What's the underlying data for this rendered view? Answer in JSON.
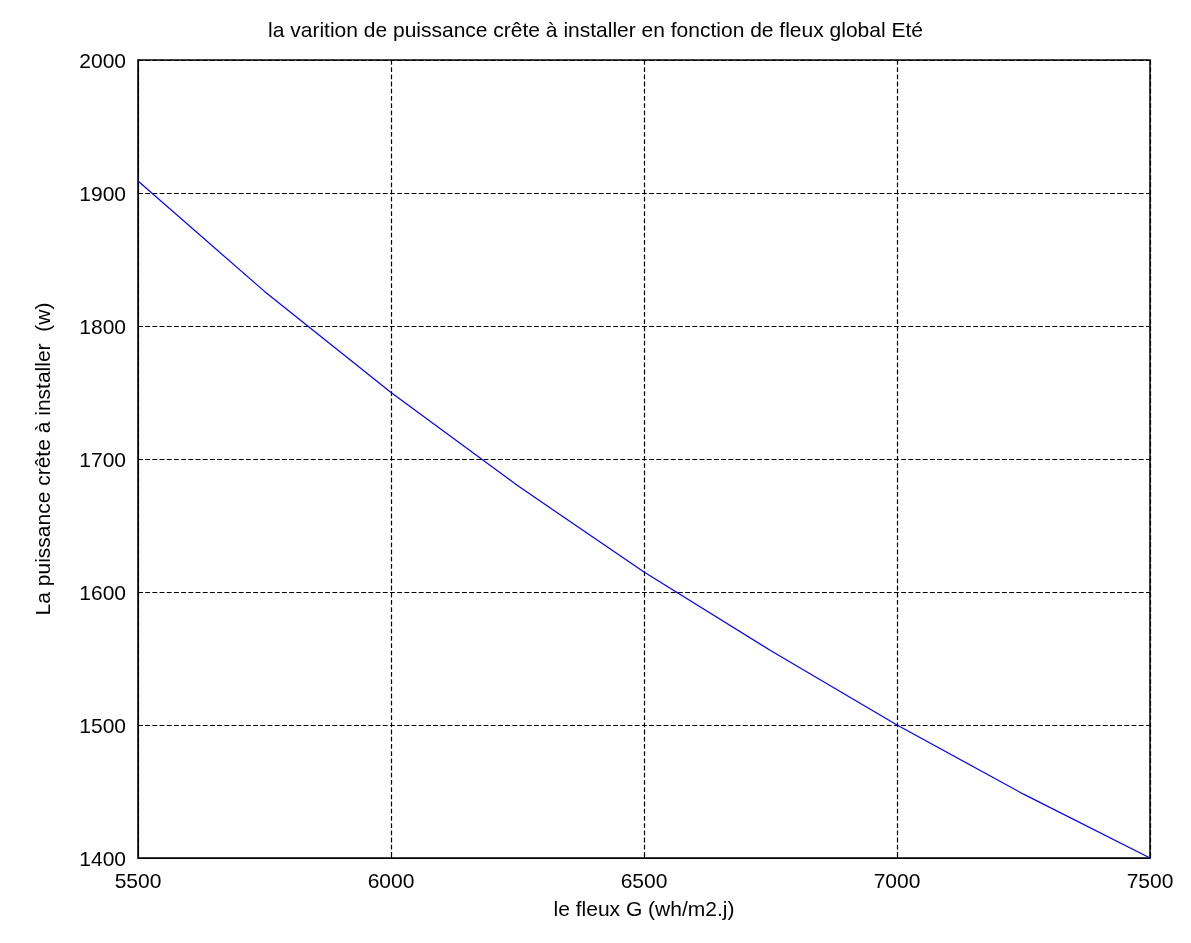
{
  "chart_data": {
    "type": "line",
    "title": "la varition de puissance crête à installer en fonction de fleux global Eté",
    "xlabel": "le fleux G (wh/m2.j)",
    "ylabel": "La puissance crête à installer  (w)",
    "x": [
      5500,
      5750,
      6000,
      6250,
      6500,
      6750,
      7000,
      7250,
      7500
    ],
    "series": [
      {
        "color": "#0000ff",
        "values": [
          1909,
          1826,
          1750,
          1680,
          1615,
          1556,
          1500,
          1448,
          1400
        ]
      }
    ],
    "xlim": [
      5500,
      7500
    ],
    "xticks": [
      5500,
      6000,
      6500,
      7000,
      7500
    ],
    "ylim": [
      1400,
      2000
    ],
    "yticks": [
      1400,
      1500,
      1600,
      1700,
      1800,
      1900,
      2000
    ],
    "grid": true,
    "marker": "none",
    "line_style": "solid"
  }
}
